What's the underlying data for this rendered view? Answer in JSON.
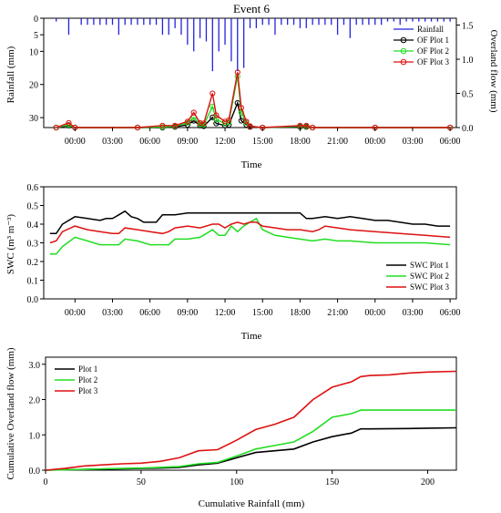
{
  "title": "Event 6",
  "colors": {
    "plot1": "#000000",
    "plot2": "#22dd22",
    "plot3": "#dd1111",
    "rain": "#2222dd"
  },
  "time_ticks": [
    "00:00",
    "03:00",
    "06:00",
    "09:00",
    "12:00",
    "15:00",
    "18:00",
    "21:00",
    "00:00",
    "03:00",
    "06:00"
  ],
  "chart_data": [
    {
      "type": "line",
      "title": "Event 6",
      "xlabel": "Time",
      "ylabel_left": "Rainfall (mm)",
      "ylabel_right": "Overland flow (mm)",
      "ylim_left": [
        0,
        33
      ],
      "ylim_left_inverted": true,
      "ylim_right": [
        0,
        1.6
      ],
      "yticks_left": [
        0,
        5,
        10,
        20,
        30
      ],
      "yticks_right": [
        "0.0",
        "0.5",
        "1.0",
        "1.5"
      ],
      "legend": [
        "Rainfall",
        "OF Plot 1",
        "OF Plot 2",
        "OF Plot 3"
      ],
      "legend_position": "top-right",
      "rainfall": {
        "name": "Rainfall",
        "x": [
          -1.5,
          -0.5,
          0.5,
          1,
          1.5,
          2,
          2.5,
          3,
          3.5,
          4,
          4.5,
          5,
          5.5,
          6,
          6.5,
          7,
          7.5,
          8,
          8.5,
          9,
          9.5,
          10,
          10.5,
          11,
          11.5,
          12,
          12.5,
          13,
          13.5,
          14,
          14.5,
          15,
          15.5,
          16,
          16.5,
          17,
          17.5,
          18,
          18.5,
          19,
          19.5,
          20,
          20.5,
          21,
          21.5,
          22,
          22.5,
          23,
          23.5,
          24,
          24.5,
          25,
          25.5,
          26,
          26.5,
          27,
          27.5,
          28,
          28.5,
          29,
          29.5,
          30
        ],
        "values": [
          1,
          5,
          2,
          2,
          2,
          2,
          2,
          2,
          5,
          2,
          2,
          2,
          2,
          2,
          2,
          5,
          5,
          3,
          5,
          8,
          10,
          6,
          7,
          16,
          10,
          8,
          13,
          16,
          15,
          3,
          3,
          2,
          2,
          5,
          2,
          2,
          2,
          3,
          3,
          2,
          2,
          2,
          2,
          5,
          2,
          6,
          2,
          2,
          2,
          2,
          2,
          1,
          1,
          2,
          1,
          1,
          1,
          1,
          1,
          1,
          1,
          1
        ]
      },
      "series": [
        {
          "name": "OF Plot 1",
          "x": [
            -1.5,
            -0.5,
            0,
            5,
            7,
            8,
            9,
            9.5,
            10,
            10.3,
            11,
            11.3,
            12,
            12.3,
            13,
            13.3,
            13.7,
            14,
            15,
            18,
            18.5,
            19,
            24,
            30
          ],
          "values": [
            0,
            0.03,
            0,
            0,
            0,
            0.01,
            0.04,
            0.1,
            0.03,
            0.02,
            0.15,
            0.06,
            0.03,
            0.04,
            0.36,
            0.1,
            0.04,
            0.01,
            0,
            0.01,
            0.01,
            0,
            0,
            0
          ]
        },
        {
          "name": "OF Plot 2",
          "x": [
            -1.5,
            -0.5,
            0,
            5,
            7,
            8,
            9,
            9.5,
            10,
            10.3,
            11,
            11.3,
            12,
            12.3,
            13,
            13.3,
            13.7,
            14,
            15,
            18,
            18.5,
            19,
            24,
            30
          ],
          "values": [
            0,
            0.04,
            0,
            0,
            0.01,
            0.02,
            0.07,
            0.15,
            0.05,
            0.04,
            0.31,
            0.12,
            0.06,
            0.08,
            0.75,
            0.22,
            0.07,
            0.02,
            0,
            0.02,
            0.02,
            0,
            0,
            0
          ]
        },
        {
          "name": "OF Plot 3",
          "x": [
            -1.5,
            -0.5,
            0,
            5,
            7,
            8,
            9,
            9.5,
            10,
            10.3,
            11,
            11.3,
            12,
            12.3,
            13,
            13.3,
            13.7,
            14,
            15,
            18,
            18.5,
            19,
            24,
            30
          ],
          "values": [
            0,
            0.07,
            0,
            0,
            0.03,
            0.03,
            0.09,
            0.22,
            0.07,
            0.06,
            0.5,
            0.18,
            0.09,
            0.11,
            0.81,
            0.29,
            0.09,
            0.02,
            0,
            0.03,
            0.03,
            0,
            0,
            0
          ]
        }
      ]
    },
    {
      "type": "line",
      "xlabel": "Time",
      "ylabel": "SWC (m³ m⁻³)",
      "ylim": [
        0,
        0.6
      ],
      "yticks": [
        "0.0",
        "0.1",
        "0.2",
        "0.3",
        "0.4",
        "0.5",
        "0.6"
      ],
      "legend_position": "bottom-right",
      "series": [
        {
          "name": "SWC Plot 1",
          "x": [
            -2,
            -1.5,
            -1,
            0,
            1,
            2,
            2.5,
            3,
            3.5,
            4,
            4.5,
            5,
            5.5,
            6,
            6.5,
            7,
            8,
            9,
            10,
            11,
            12,
            13,
            14,
            15,
            16,
            17,
            18,
            18.5,
            19,
            20,
            21,
            22,
            23,
            24,
            25,
            26,
            27,
            28,
            29,
            30
          ],
          "values": [
            0.35,
            0.35,
            0.4,
            0.44,
            0.43,
            0.42,
            0.43,
            0.43,
            0.45,
            0.47,
            0.44,
            0.43,
            0.41,
            0.41,
            0.41,
            0.45,
            0.45,
            0.46,
            0.46,
            0.46,
            0.46,
            0.46,
            0.46,
            0.46,
            0.46,
            0.46,
            0.46,
            0.43,
            0.43,
            0.44,
            0.43,
            0.44,
            0.43,
            0.42,
            0.42,
            0.41,
            0.4,
            0.4,
            0.39,
            0.39
          ]
        },
        {
          "name": "SWC Plot 2",
          "x": [
            -2,
            -1.5,
            -1,
            0,
            1,
            2,
            3,
            3.5,
            4,
            5,
            6,
            7,
            7.5,
            8,
            9,
            10,
            10.5,
            11,
            11.5,
            12,
            12.5,
            13,
            13.5,
            14,
            14.5,
            15,
            16,
            17,
            18,
            19,
            20,
            21,
            22,
            24,
            26,
            28,
            30
          ],
          "values": [
            0.24,
            0.24,
            0.28,
            0.33,
            0.31,
            0.29,
            0.29,
            0.29,
            0.32,
            0.31,
            0.29,
            0.29,
            0.29,
            0.32,
            0.32,
            0.33,
            0.35,
            0.37,
            0.34,
            0.34,
            0.39,
            0.36,
            0.39,
            0.41,
            0.43,
            0.37,
            0.34,
            0.33,
            0.32,
            0.31,
            0.32,
            0.31,
            0.31,
            0.3,
            0.3,
            0.3,
            0.29
          ]
        },
        {
          "name": "SWC Plot 3",
          "x": [
            -2,
            -1.5,
            -1,
            0,
            1,
            2,
            3,
            3.5,
            4,
            5,
            6,
            7,
            7.5,
            8,
            9,
            10,
            11,
            11.5,
            12,
            12.5,
            13,
            13.5,
            14,
            14.5,
            15,
            16,
            17,
            18,
            19,
            19.5,
            20,
            21,
            22,
            24,
            26,
            28,
            30
          ],
          "values": [
            0.3,
            0.31,
            0.36,
            0.39,
            0.37,
            0.36,
            0.35,
            0.35,
            0.38,
            0.37,
            0.36,
            0.35,
            0.36,
            0.38,
            0.39,
            0.38,
            0.4,
            0.4,
            0.38,
            0.4,
            0.41,
            0.4,
            0.41,
            0.41,
            0.39,
            0.38,
            0.37,
            0.37,
            0.36,
            0.37,
            0.39,
            0.38,
            0.37,
            0.36,
            0.35,
            0.34,
            0.33
          ]
        }
      ]
    },
    {
      "type": "line",
      "xlabel": "Cumulative Rainfall (mm)",
      "ylabel": "Cumulative Overland flow (mm)",
      "xlim": [
        0,
        215
      ],
      "ylim": [
        0,
        3.2
      ],
      "xticks": [
        0,
        50,
        100,
        150,
        200
      ],
      "yticks": [
        "0.0",
        "1.0",
        "2.0",
        "3.0"
      ],
      "legend_position": "top-left",
      "series": [
        {
          "name": "Plot 1",
          "x": [
            0,
            10,
            20,
            30,
            50,
            60,
            70,
            80,
            90,
            100,
            110,
            120,
            130,
            140,
            150,
            160,
            165,
            170,
            190,
            200,
            215
          ],
          "values": [
            0,
            0.01,
            0.02,
            0.03,
            0.05,
            0.06,
            0.08,
            0.15,
            0.2,
            0.35,
            0.5,
            0.55,
            0.6,
            0.8,
            0.95,
            1.05,
            1.17,
            1.17,
            1.18,
            1.19,
            1.2
          ]
        },
        {
          "name": "Plot 2",
          "x": [
            0,
            10,
            20,
            30,
            50,
            60,
            70,
            80,
            90,
            100,
            110,
            120,
            130,
            140,
            150,
            160,
            165,
            170,
            190,
            200,
            215
          ],
          "values": [
            0,
            0.01,
            0.02,
            0.04,
            0.06,
            0.08,
            0.1,
            0.18,
            0.22,
            0.4,
            0.6,
            0.7,
            0.8,
            1.1,
            1.5,
            1.6,
            1.7,
            1.7,
            1.7,
            1.7,
            1.7
          ]
        },
        {
          "name": "Plot 3",
          "x": [
            0,
            10,
            20,
            30,
            40,
            50,
            60,
            70,
            80,
            90,
            100,
            110,
            120,
            130,
            140,
            150,
            160,
            165,
            170,
            180,
            190,
            200,
            215
          ],
          "values": [
            0,
            0.05,
            0.12,
            0.15,
            0.18,
            0.2,
            0.25,
            0.35,
            0.55,
            0.58,
            0.85,
            1.15,
            1.3,
            1.5,
            2.0,
            2.35,
            2.5,
            2.65,
            2.68,
            2.7,
            2.75,
            2.78,
            2.8
          ]
        }
      ]
    }
  ]
}
